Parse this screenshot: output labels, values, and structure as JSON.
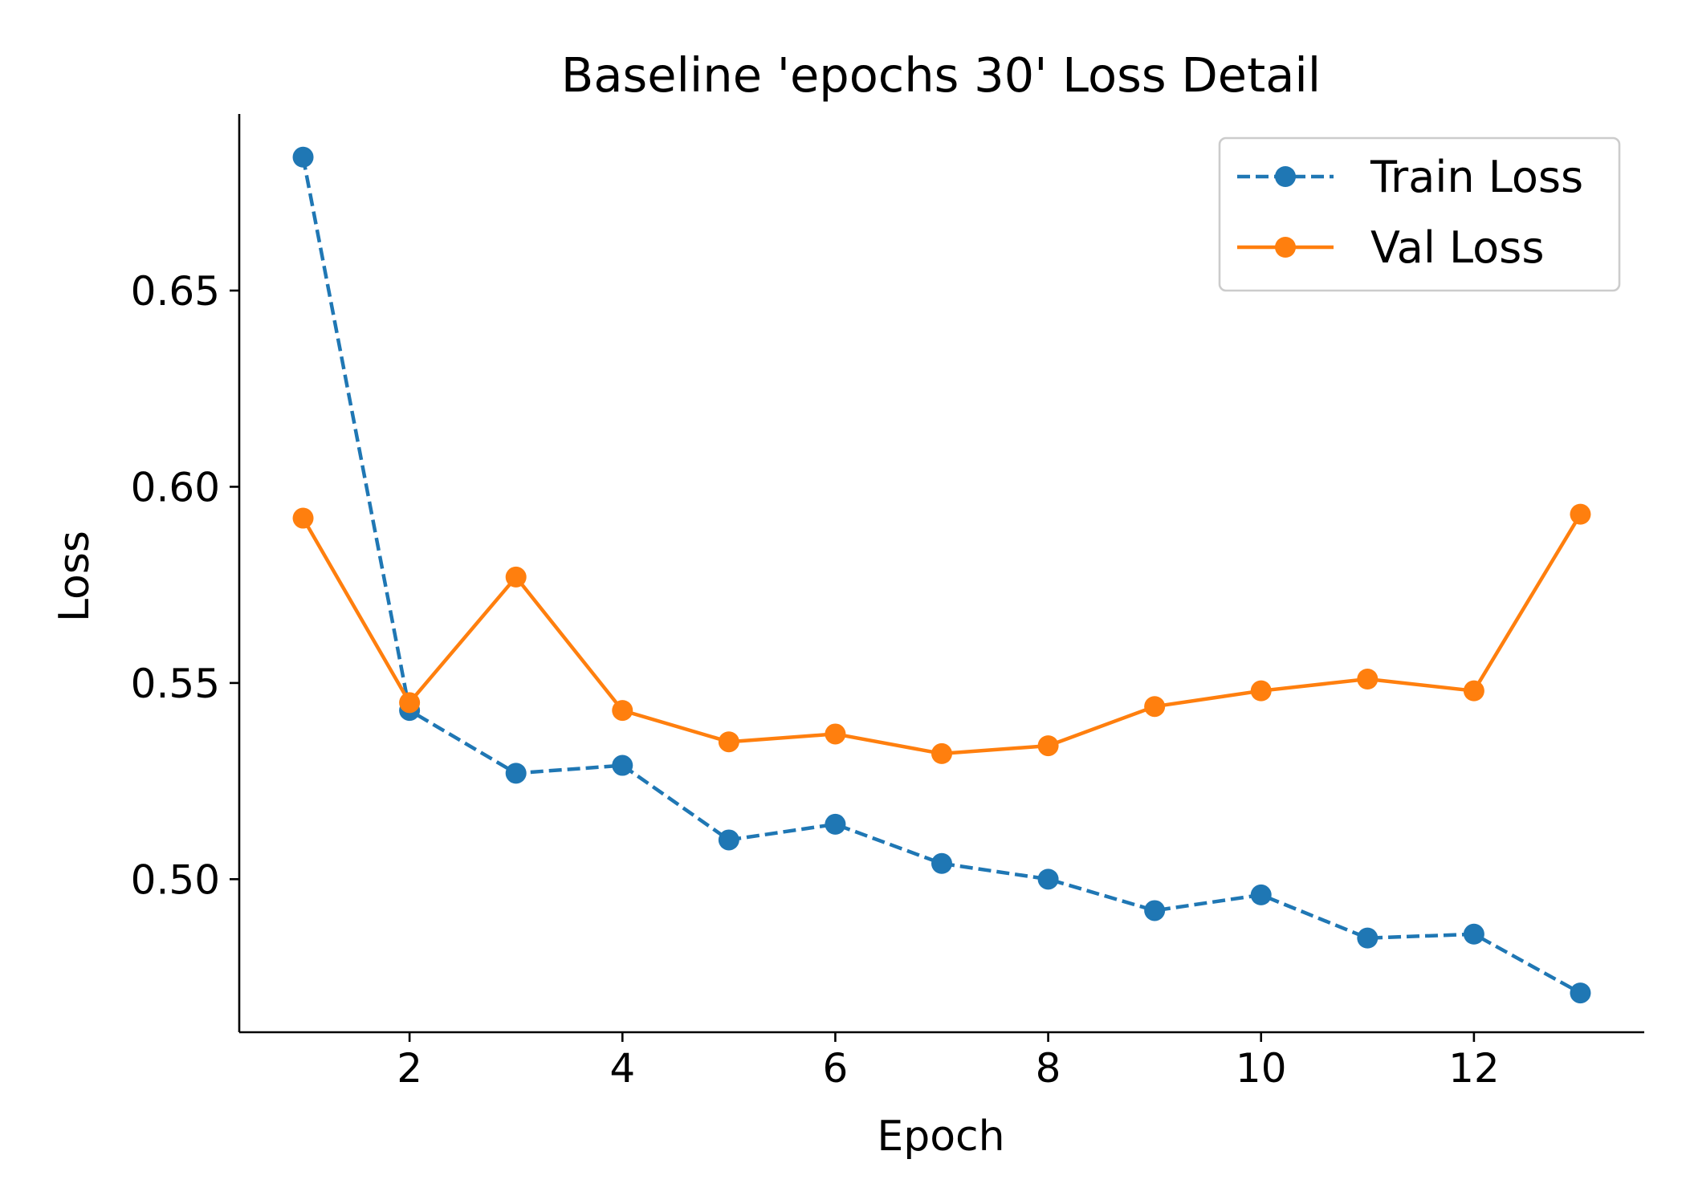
{
  "chart_data": {
    "type": "line",
    "title": "Baseline 'epochs 30' Loss Detail",
    "xlabel": "Epoch",
    "ylabel": "Loss",
    "x": [
      1,
      2,
      3,
      4,
      5,
      6,
      7,
      8,
      9,
      10,
      11,
      12,
      13
    ],
    "xlim": [
      0.4,
      13.6
    ],
    "ylim": [
      0.461,
      0.695
    ],
    "xticks": [
      2,
      4,
      6,
      8,
      10,
      12
    ],
    "xtick_labels": [
      "2",
      "4",
      "6",
      "8",
      "10",
      "12"
    ],
    "yticks": [
      0.5,
      0.55,
      0.6,
      0.65
    ],
    "ytick_labels": [
      "0.50",
      "0.55",
      "0.60",
      "0.65"
    ],
    "grid": false,
    "legend_position": "top-right",
    "series": [
      {
        "name": "Train Loss",
        "color": "#1f77b4",
        "line_style": "dashed",
        "marker": "circle",
        "values": [
          0.684,
          0.543,
          0.527,
          0.529,
          0.51,
          0.514,
          0.504,
          0.5,
          0.492,
          0.496,
          0.485,
          0.486,
          0.471
        ]
      },
      {
        "name": "Val Loss",
        "color": "#ff7f0e",
        "line_style": "solid",
        "marker": "circle",
        "values": [
          0.592,
          0.545,
          0.577,
          0.543,
          0.535,
          0.537,
          0.532,
          0.534,
          0.544,
          0.548,
          0.551,
          0.548,
          0.593
        ]
      }
    ]
  }
}
